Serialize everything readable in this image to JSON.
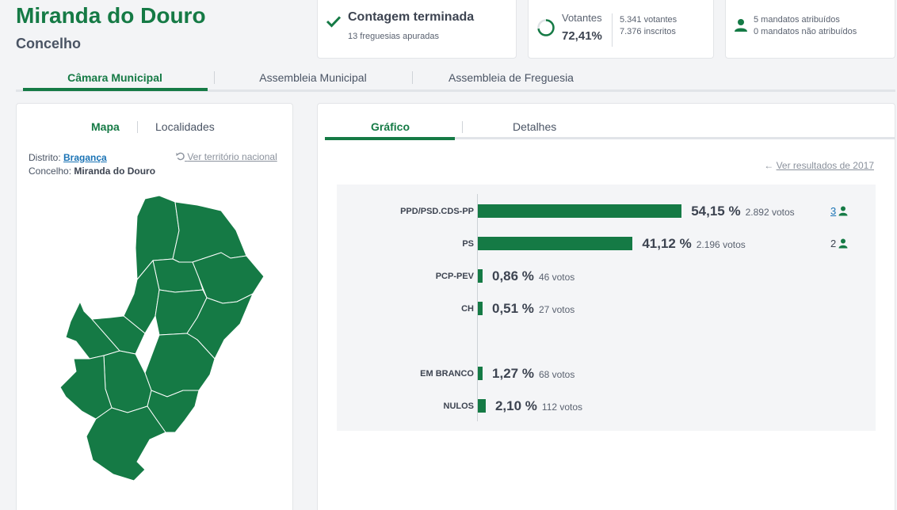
{
  "header": {
    "title": "Miranda do Douro",
    "subtitle": "Concelho"
  },
  "status_cards": {
    "count": {
      "title": "Contagem terminada",
      "subtitle": "13 freguesias apuradas"
    },
    "turnout": {
      "label": "Votantes",
      "percent": "72,41%",
      "percent_value": 72.41,
      "voters": "5.341 votantes",
      "registered": "7.376 inscritos"
    },
    "mandates": {
      "assigned": "5 mandatos atribuídos",
      "unassigned": "0 mandatos não atribuídos"
    }
  },
  "main_tabs": [
    {
      "label": "Câmara Municipal",
      "active": true
    },
    {
      "label": "Assembleia Municipal",
      "active": false
    },
    {
      "label": "Assembleia de Freguesia",
      "active": false
    }
  ],
  "left_panel": {
    "tabs": [
      {
        "label": "Mapa",
        "active": true
      },
      {
        "label": "Localidades",
        "active": false
      }
    ],
    "district_label": "Distrito:",
    "district_value": "Bragança",
    "municipality_label": "Concelho:",
    "municipality_value": "Miranda do Douro",
    "national_link": "Ver território nacional"
  },
  "right_panel": {
    "tabs": [
      {
        "label": "Gráfico",
        "active": true
      },
      {
        "label": "Detalhes",
        "active": false
      }
    ],
    "previous_link": "Ver resultados de 2017"
  },
  "chart_data": {
    "type": "bar",
    "orientation": "horizontal",
    "categories": [
      "PPD/PSD.CDS-PP",
      "PS",
      "PCP-PEV",
      "CH",
      "EM BRANCO",
      "NULOS"
    ],
    "values": [
      54.15,
      41.12,
      0.86,
      0.51,
      1.27,
      2.1
    ],
    "percent_labels": [
      "54,15 %",
      "41,12 %",
      "0,86 %",
      "0,51 %",
      "1,27 %",
      "2,10 %"
    ],
    "vote_labels": [
      "2.892 votos",
      "2.196 votos",
      "46 votos",
      "27 votos",
      "68 votos",
      "112 votos"
    ],
    "seats": [
      "3",
      "2",
      "",
      "",
      "",
      ""
    ],
    "color": "#157a45"
  },
  "colors": {
    "accent": "#157a45",
    "link": "#1a73b5"
  }
}
